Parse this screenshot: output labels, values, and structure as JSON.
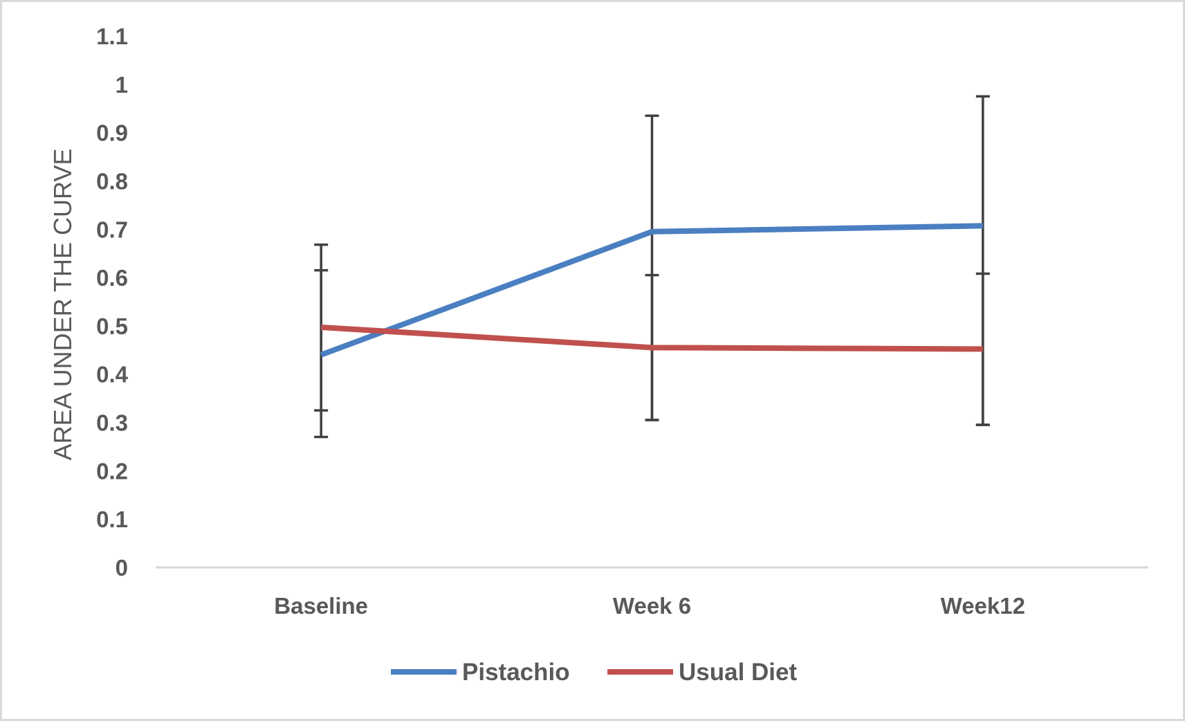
{
  "chart_data": {
    "type": "line",
    "title": "",
    "xlabel": "",
    "ylabel": "AREA UNDER THE CURVE",
    "categories": [
      "Baseline",
      "Week 6",
      "Week12"
    ],
    "ylim": [
      0,
      1.1
    ],
    "yticks": [
      "0",
      "0.1",
      "0.2",
      "0.3",
      "0.4",
      "0.5",
      "0.6",
      "0.7",
      "0.8",
      "0.9",
      "1",
      "1.1"
    ],
    "grid": false,
    "legend": "bottom",
    "series": [
      {
        "name": "Pistachio",
        "color": "#4a7fc1",
        "values": [
          0.44,
          0.695,
          0.707
        ],
        "error_low": [
          0.27,
          0.305,
          0.295
        ],
        "error_high": [
          0.615,
          0.935,
          0.975
        ]
      },
      {
        "name": "Usual Diet",
        "color": "#c0504d",
        "values": [
          0.497,
          0.455,
          0.452
        ],
        "error_low": [
          0.325,
          0.305,
          0.295
        ],
        "error_high": [
          0.668,
          0.605,
          0.608
        ]
      }
    ],
    "error_bar_color": "#404040",
    "axis_line_color": "#d9d9d9"
  }
}
